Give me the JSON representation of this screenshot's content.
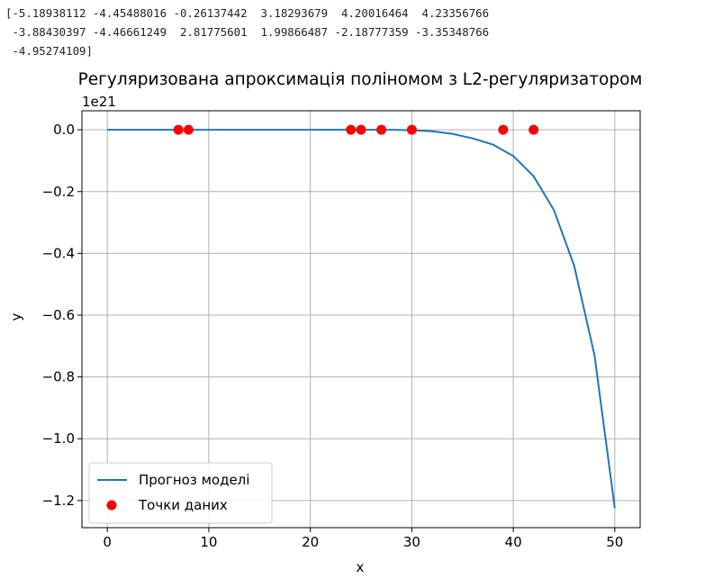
{
  "output_text": {
    "lines": [
      "[-5.18938112 -4.45488016 -0.26137442  3.18293679  4.20016464  4.23356766",
      " -3.88430397 -4.46661249  2.81775601  1.99866487 -2.18777359 -3.35348766",
      " -4.95274109]"
    ]
  },
  "chart_data": {
    "type": "line",
    "title": "Регуляризована апроксимація поліномом з L2-регуляризатором",
    "xlabel": "x",
    "ylabel": "y",
    "y_offset_label": "1e21",
    "xlim": [
      -2.5,
      52.5
    ],
    "ylim": [
      -1.2879,
      0.0616
    ],
    "x_ticks": [
      0,
      10,
      20,
      30,
      40,
      50
    ],
    "x_tick_labels": [
      "0",
      "10",
      "20",
      "30",
      "40",
      "50"
    ],
    "y_ticks": [
      0.0,
      -0.2,
      -0.4,
      -0.6,
      -0.8,
      -1.0,
      -1.2
    ],
    "y_tick_labels": [
      "0.0",
      "−0.2",
      "−0.4",
      "−0.6",
      "−0.8",
      "−1.0",
      "−1.2"
    ],
    "grid": true,
    "legend_position": "lower-left",
    "series": [
      {
        "name": "Прогноз моделі",
        "kind": "line",
        "color": "#1f77b4",
        "x": [
          0,
          5,
          10,
          15,
          20,
          25,
          28,
          30,
          32,
          34,
          36,
          38,
          40,
          42,
          44,
          46,
          48,
          50
        ],
        "values": [
          0.0,
          0.0,
          0.0,
          0.0,
          0.0,
          0.0,
          0.0,
          -0.0015,
          -0.005,
          -0.013,
          -0.028,
          -0.048,
          -0.085,
          -0.15,
          -0.26,
          -0.44,
          -0.73,
          -1.225
        ]
      },
      {
        "name": "Точки даних",
        "kind": "scatter",
        "color": "#ff0000",
        "x": [
          7,
          8,
          24,
          25,
          27,
          30,
          39,
          42
        ],
        "values": [
          0.0,
          0.0,
          0.0,
          0.0,
          0.0,
          0.0,
          0.0,
          0.0
        ]
      }
    ]
  }
}
